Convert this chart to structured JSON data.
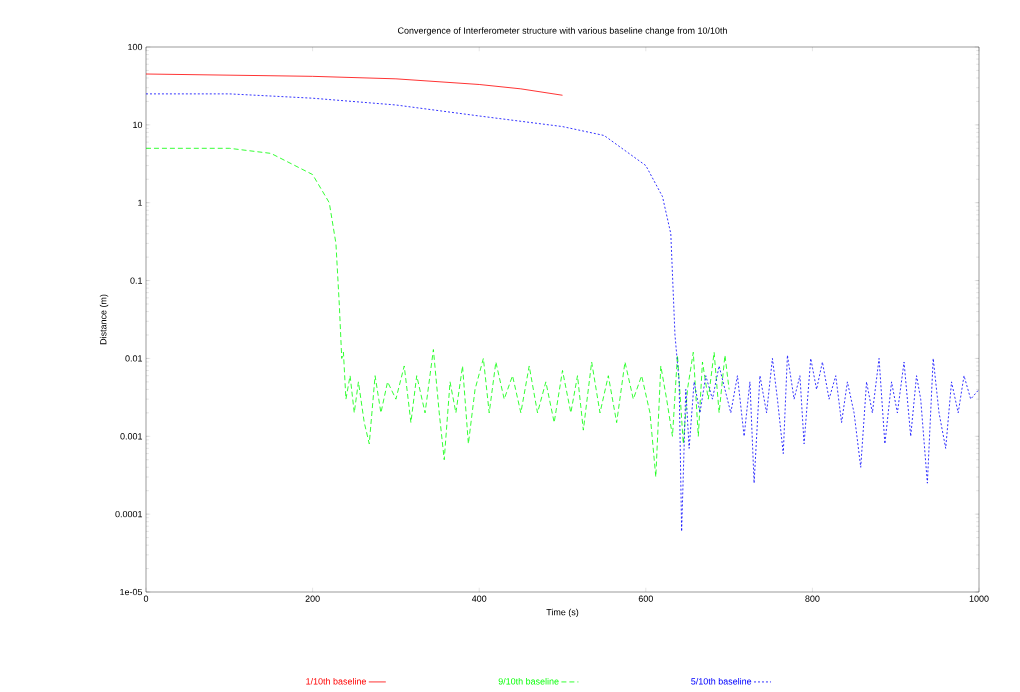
{
  "chart_data": {
    "type": "line",
    "title": "Convergence of Interferometer structure with various baseline change from 10/10th",
    "xlabel": "Time (s)",
    "ylabel": "Distance (m)",
    "log": "y",
    "grid": false,
    "legend": "bottom",
    "marker": "none",
    "xlim": [
      0,
      1000
    ],
    "xticks": [
      0,
      200,
      400,
      600,
      800,
      1000
    ],
    "ylim": [
      1e-05,
      100
    ],
    "yticks": [
      {
        "value": 1e-05,
        "label": "1e-05"
      },
      0.0001,
      0.001,
      0.01,
      0.1,
      1,
      10,
      100
    ],
    "series": [
      {
        "name": "1/10th baseline",
        "color": "#ff0000",
        "line_style": "solid",
        "x": [
          0,
          200,
          300,
          400,
          450,
          500
        ],
        "values": [
          45,
          42,
          39,
          33,
          29,
          24
        ]
      },
      {
        "name": "9/10th baseline",
        "color": "#00ff00",
        "line_style": "dashed",
        "x": [
          0,
          100,
          150,
          200,
          220,
          228,
          232,
          235,
          237,
          240,
          245,
          250,
          255,
          262,
          268,
          275,
          282,
          290,
          300,
          310,
          318,
          325,
          335,
          345,
          352,
          358,
          365,
          372,
          380,
          387,
          395,
          405,
          412,
          420,
          430,
          440,
          450,
          460,
          470,
          480,
          490,
          500,
          510,
          518,
          525,
          535,
          545,
          555,
          565,
          575,
          585,
          595,
          605,
          612,
          618,
          625,
          632,
          638,
          645,
          650,
          657,
          663,
          668,
          675,
          682,
          688,
          695,
          700
        ],
        "values": [
          5,
          5,
          4.3,
          2.3,
          1,
          0.3,
          0.05,
          0.01,
          0.012,
          0.003,
          0.006,
          0.002,
          0.005,
          0.0015,
          0.0008,
          0.006,
          0.002,
          0.005,
          0.003,
          0.008,
          0.0015,
          0.006,
          0.002,
          0.013,
          0.002,
          0.0005,
          0.005,
          0.002,
          0.008,
          0.0008,
          0.004,
          0.01,
          0.002,
          0.009,
          0.003,
          0.006,
          0.002,
          0.008,
          0.002,
          0.005,
          0.0015,
          0.007,
          0.002,
          0.006,
          0.0012,
          0.009,
          0.002,
          0.006,
          0.0015,
          0.009,
          0.003,
          0.006,
          0.002,
          0.0003,
          0.008,
          0.003,
          0.001,
          0.011,
          0.0008,
          0.004,
          0.012,
          0.001,
          0.009,
          0.003,
          0.012,
          0.002,
          0.011,
          0.004
        ]
      },
      {
        "name": "5/10th baseline",
        "color": "#0000ff",
        "line_style": "dotted",
        "x": [
          0,
          100,
          200,
          300,
          400,
          500,
          550,
          600,
          620,
          630,
          635,
          640,
          643,
          648,
          652,
          658,
          665,
          672,
          680,
          688,
          695,
          702,
          710,
          718,
          725,
          730,
          737,
          745,
          752,
          758,
          765,
          770,
          778,
          785,
          790,
          798,
          805,
          812,
          820,
          828,
          835,
          842,
          850,
          858,
          865,
          872,
          880,
          887,
          895,
          902,
          910,
          918,
          925,
          930,
          938,
          945,
          952,
          960,
          967,
          975,
          982,
          990,
          1000
        ],
        "values": [
          25,
          25,
          22,
          18,
          13,
          9.5,
          7.3,
          3,
          1.2,
          0.4,
          0.02,
          0.005,
          6e-05,
          0.004,
          0.0007,
          0.005,
          0.002,
          0.006,
          0.003,
          0.008,
          0.004,
          0.002,
          0.006,
          0.001,
          0.005,
          0.00025,
          0.006,
          0.002,
          0.01,
          0.003,
          0.0006,
          0.011,
          0.003,
          0.006,
          0.0008,
          0.01,
          0.004,
          0.009,
          0.003,
          0.006,
          0.0015,
          0.005,
          0.002,
          0.0004,
          0.005,
          0.002,
          0.01,
          0.0008,
          0.005,
          0.002,
          0.009,
          0.001,
          0.006,
          0.003,
          0.00025,
          0.01,
          0.002,
          0.0007,
          0.005,
          0.002,
          0.006,
          0.003,
          0.004
        ]
      }
    ]
  }
}
